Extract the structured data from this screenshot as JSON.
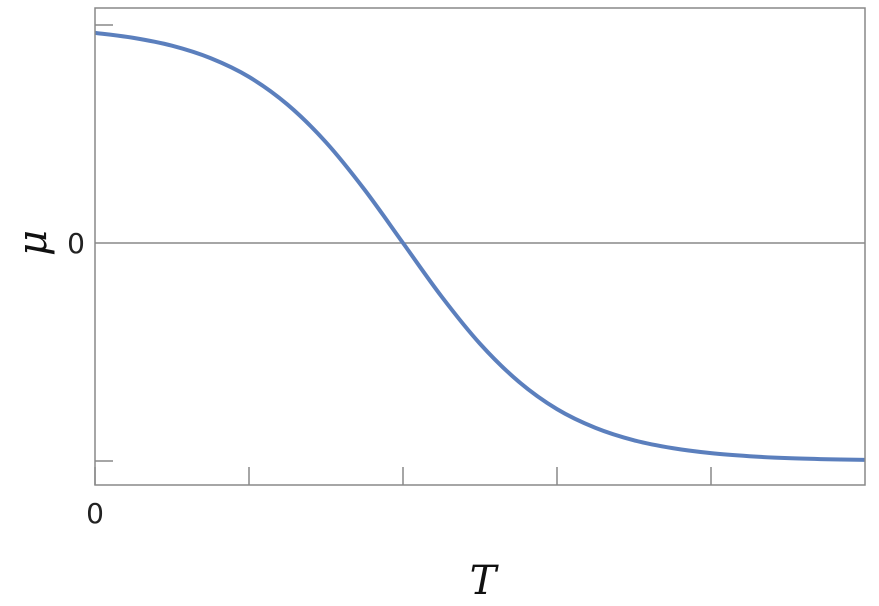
{
  "chart_data": {
    "type": "line",
    "title": "",
    "xlabel": "T",
    "ylabel": "μ",
    "xlim": [
      0,
      5
    ],
    "ylim": [
      -1.11,
      1.078
    ],
    "x_ticks": [
      0,
      1,
      2,
      3,
      4
    ],
    "x_tick_labels": [
      "0",
      "",
      "",
      "",
      ""
    ],
    "y_ticks": [
      -1,
      0,
      1
    ],
    "y_tick_labels": [
      "",
      "0",
      ""
    ],
    "grid": false,
    "zero_line": true,
    "series": [
      {
        "color": "#5b7fbd",
        "x": [
          0,
          0.25,
          0.5,
          0.75,
          1,
          1.25,
          1.5,
          1.75,
          2,
          2.25,
          2.5,
          2.75,
          3,
          3.25,
          3.5,
          3.75,
          4,
          4.25,
          4.5,
          4.75,
          5
        ],
        "y": [
          0.964,
          0.941,
          0.905,
          0.848,
          0.762,
          0.635,
          0.462,
          0.245,
          0,
          -0.245,
          -0.462,
          -0.635,
          -0.762,
          -0.848,
          -0.905,
          -0.941,
          -0.964,
          -0.978,
          -0.987,
          -0.992,
          -0.995
        ]
      }
    ]
  }
}
